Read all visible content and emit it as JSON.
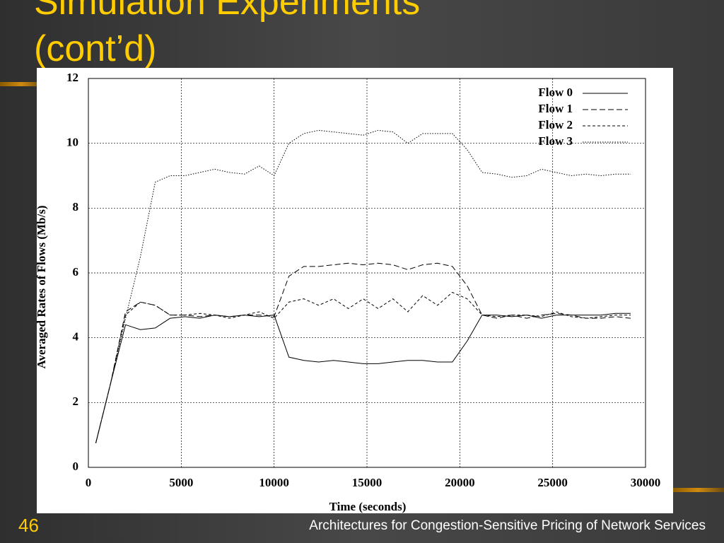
{
  "slide": {
    "title": "Simulation Experiments (cont’d)",
    "page_number": "46",
    "footer": "Architectures for Congestion-Sensitive Pricing of Network Services"
  },
  "chart_data": {
    "type": "line",
    "xlabel": "Time (seconds)",
    "ylabel": "Averaged Rates of Flows (Mb/s)",
    "x": [
      400,
      1200,
      2000,
      2800,
      3600,
      4400,
      5200,
      6000,
      6800,
      7600,
      8400,
      9200,
      10000,
      10800,
      11600,
      12400,
      13200,
      14000,
      14800,
      15600,
      16400,
      17200,
      18000,
      18800,
      19600,
      20400,
      21200,
      22000,
      22800,
      23600,
      24400,
      25200,
      26000,
      26800,
      27600,
      28400,
      29200
    ],
    "series": [
      {
        "name": "Flow 0",
        "color": "#000000",
        "line_style": "solid",
        "values": [
          0.75,
          2.6,
          4.4,
          4.25,
          4.3,
          4.6,
          4.65,
          4.6,
          4.7,
          4.65,
          4.7,
          4.65,
          4.7,
          3.4,
          3.3,
          3.25,
          3.3,
          3.25,
          3.2,
          3.2,
          3.25,
          3.3,
          3.3,
          3.25,
          3.25,
          3.9,
          4.7,
          4.7,
          4.65,
          4.7,
          4.6,
          4.7,
          4.7,
          4.7,
          4.7,
          4.75,
          4.75
        ]
      },
      {
        "name": "Flow 1",
        "color": "#000000",
        "line_style": "long-dash",
        "values": [
          0.75,
          2.6,
          4.8,
          5.1,
          5.0,
          4.7,
          4.7,
          4.65,
          4.7,
          4.65,
          4.7,
          4.7,
          4.65,
          5.9,
          6.2,
          6.2,
          6.25,
          6.3,
          6.25,
          6.3,
          6.25,
          6.1,
          6.25,
          6.3,
          6.2,
          5.6,
          4.7,
          4.6,
          4.7,
          4.6,
          4.7,
          4.75,
          4.7,
          4.6,
          4.6,
          4.65,
          4.6
        ]
      },
      {
        "name": "Flow 2",
        "color": "#000000",
        "line_style": "short-dash",
        "values": [
          0.75,
          2.6,
          4.7,
          5.1,
          5.0,
          4.7,
          4.7,
          4.75,
          4.7,
          4.6,
          4.7,
          4.8,
          4.6,
          5.1,
          5.2,
          5.0,
          5.2,
          4.9,
          5.2,
          4.9,
          5.2,
          4.8,
          5.3,
          5.0,
          5.4,
          5.2,
          4.7,
          4.65,
          4.7,
          4.7,
          4.65,
          4.8,
          4.65,
          4.6,
          4.65,
          4.7,
          4.7
        ]
      },
      {
        "name": "Flow 3",
        "color": "#000000",
        "line_style": "dotted",
        "values": [
          0.75,
          2.6,
          4.6,
          6.5,
          8.8,
          9.0,
          9.0,
          9.1,
          9.2,
          9.1,
          9.05,
          9.3,
          9.0,
          10.0,
          10.3,
          10.4,
          10.35,
          10.3,
          10.25,
          10.4,
          10.35,
          10.0,
          10.3,
          10.3,
          10.3,
          9.8,
          9.1,
          9.05,
          8.95,
          9.0,
          9.2,
          9.1,
          9.0,
          9.05,
          9.0,
          9.05,
          9.05
        ]
      }
    ],
    "xlim": [
      0,
      30000
    ],
    "xticks": [
      0,
      5000,
      10000,
      15000,
      20000,
      25000,
      30000
    ],
    "ylim": [
      0,
      12
    ],
    "yticks": [
      0,
      2,
      4,
      6,
      8,
      10,
      12
    ],
    "grid": true,
    "legend": "upper right"
  }
}
